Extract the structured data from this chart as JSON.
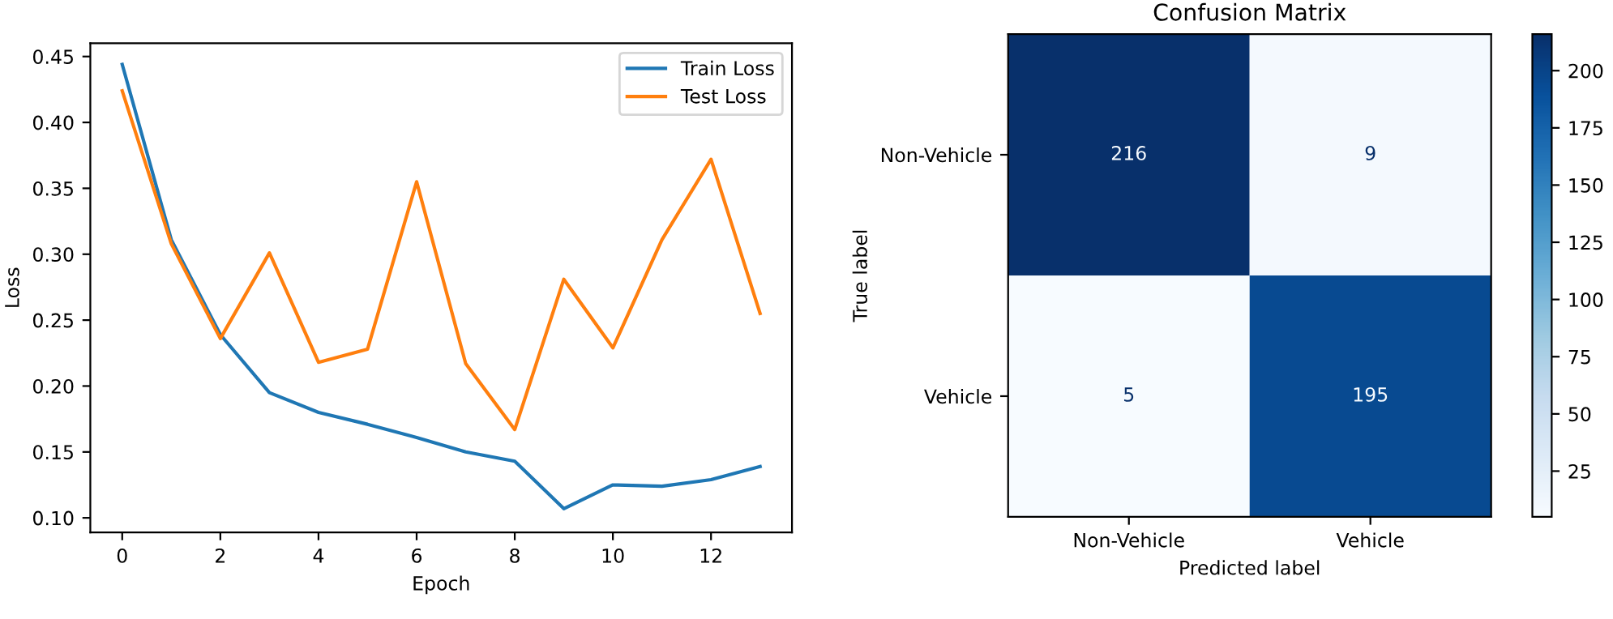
{
  "chart_data": [
    {
      "type": "line",
      "xlabel": "Epoch",
      "ylabel": "Loss",
      "x": [
        0,
        1,
        2,
        3,
        4,
        5,
        6,
        7,
        8,
        9,
        10,
        11,
        12,
        13
      ],
      "series": [
        {
          "name": "Train Loss",
          "color": "#1f77b4",
          "values": [
            0.444,
            0.311,
            0.239,
            0.195,
            0.18,
            0.171,
            0.161,
            0.15,
            0.143,
            0.107,
            0.125,
            0.124,
            0.129,
            0.139
          ]
        },
        {
          "name": "Test Loss",
          "color": "#ff7f0e",
          "values": [
            0.424,
            0.308,
            0.236,
            0.301,
            0.218,
            0.228,
            0.355,
            0.217,
            0.167,
            0.281,
            0.229,
            0.311,
            0.372,
            0.255
          ]
        }
      ],
      "xlim": [
        -0.65,
        13.65
      ],
      "xticks": [
        0,
        2,
        4,
        6,
        8,
        10,
        12
      ],
      "ylim": [
        0.089,
        0.46
      ],
      "yticks": [
        {
          "value": 0.1,
          "label": "0.10"
        },
        0.15,
        {
          "value": 0.2,
          "label": "0.20"
        },
        0.25,
        {
          "value": 0.3,
          "label": "0.30"
        },
        0.35,
        {
          "value": 0.4,
          "label": "0.40"
        },
        0.45
      ],
      "grid": false,
      "legend": "top right",
      "marker": "none",
      "line_style": "solid"
    },
    {
      "type": "heatmap",
      "title": "Confusion Matrix",
      "xlabel": "Predicted label",
      "ylabel": "True label",
      "categories": [
        "Non-Vehicle",
        "Vehicle"
      ],
      "y_categories": [
        "Non-Vehicle",
        "Vehicle"
      ],
      "cells": [
        [
          216,
          9
        ],
        [
          5,
          195
        ]
      ],
      "clim": [
        5,
        216
      ],
      "cticks": [
        25,
        50,
        75,
        100,
        125,
        150,
        175,
        200
      ],
      "data_labels": true
    }
  ]
}
